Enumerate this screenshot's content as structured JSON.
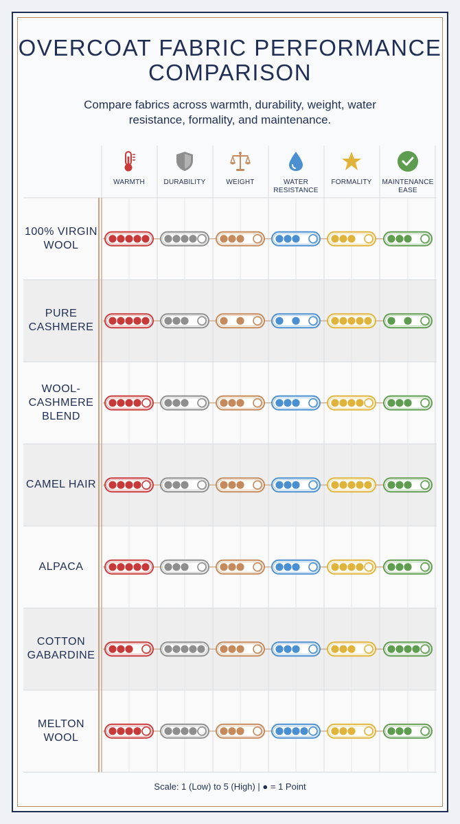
{
  "title": "OVERCOAT FABRIC PERFORMANCE COMPARISON",
  "subtitle": "Compare fabrics across warmth, durability, weight, water resistance, formality, and maintenance.",
  "footer": "Scale: 1 (Low) to 5 (High)  |  ● = 1 Point",
  "colors": {
    "warmth": "#c8393a",
    "durability": "#8e8e8e",
    "weight": "#c58a5c",
    "water": "#4a8fcf",
    "formality": "#e0b43a",
    "maintenance": "#5e9c4f"
  },
  "chart_data": {
    "type": "table",
    "scale": {
      "min": 1,
      "max": 5
    },
    "columns": [
      {
        "key": "warmth",
        "label": "WARMTH",
        "icon": "thermometer-icon"
      },
      {
        "key": "durability",
        "label": "DURABILITY",
        "icon": "shield-icon"
      },
      {
        "key": "weight",
        "label": "WEIGHT",
        "icon": "scale-icon"
      },
      {
        "key": "water",
        "label": "WATER RESISTANCE",
        "icon": "water-drop-icon"
      },
      {
        "key": "formality",
        "label": "FORMALITY",
        "icon": "star-icon"
      },
      {
        "key": "maintenance",
        "label": "MAINTENANCE EASE",
        "icon": "checkmark-icon"
      }
    ],
    "rows": [
      {
        "fabric": "100% VIRGIN WOOL",
        "values": [
          5,
          4,
          3,
          3,
          3,
          3
        ]
      },
      {
        "fabric": "PURE CASHMERE",
        "values": [
          5,
          3,
          2,
          2,
          5,
          2
        ]
      },
      {
        "fabric": "WOOL-CASHMERE BLEND",
        "values": [
          4,
          3,
          3,
          3,
          4,
          3
        ]
      },
      {
        "fabric": "CAMEL HAIR",
        "values": [
          4,
          3,
          3,
          3,
          5,
          3
        ]
      },
      {
        "fabric": "ALPACA",
        "values": [
          5,
          3,
          3,
          3,
          4,
          3
        ]
      },
      {
        "fabric": "COTTON GABARDINE",
        "values": [
          3,
          5,
          3,
          3,
          3,
          4
        ]
      },
      {
        "fabric": "MELTON WOOL",
        "values": [
          4,
          4,
          3,
          4,
          3,
          3
        ]
      }
    ]
  }
}
